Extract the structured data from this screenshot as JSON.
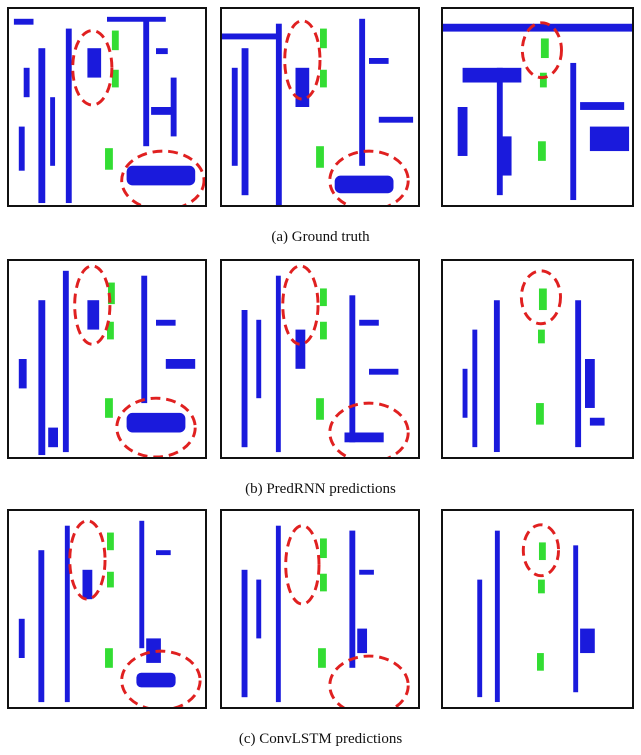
{
  "figure": {
    "rows": [
      {
        "caption": "(a) Ground truth"
      },
      {
        "caption": "(b) PredRNN predictions"
      },
      {
        "caption": "(c) ConvLSTM predictions"
      }
    ]
  },
  "colors": {
    "obstacle": "#1a1adc",
    "vehicle": "#33dd33",
    "highlight": "#e02020",
    "frame": "#111111"
  }
}
